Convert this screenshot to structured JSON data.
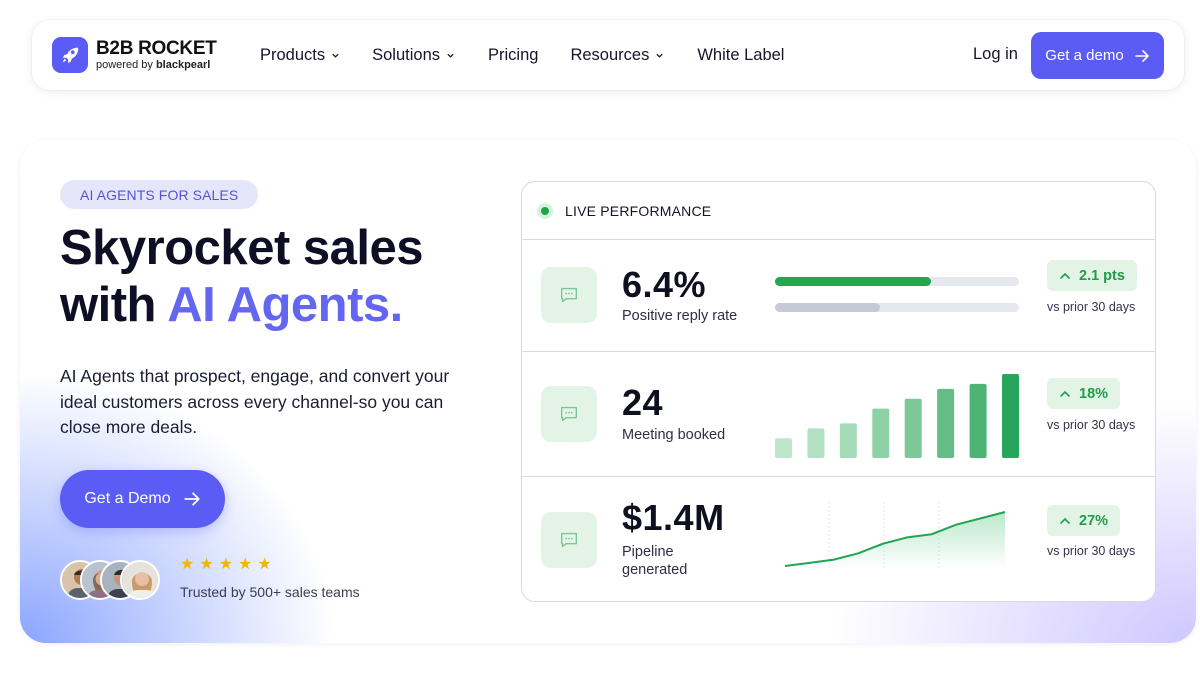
{
  "nav": {
    "logo_title": "B2B ROCKET",
    "logo_sub_prefix": "powered by ",
    "logo_sub_brand": "blackpearl",
    "links": [
      {
        "label": "Products",
        "dropdown": true
      },
      {
        "label": "Solutions",
        "dropdown": true
      },
      {
        "label": "Pricing",
        "dropdown": false
      },
      {
        "label": "Resources",
        "dropdown": true
      },
      {
        "label": "White Label",
        "dropdown": false
      }
    ],
    "login": "Log in",
    "demo": "Get a demo"
  },
  "hero": {
    "badge": "AI AGENTS FOR SALES",
    "headline_line1": "Skyrocket sales",
    "headline_line2_prefix": "with ",
    "headline_line2_accent": "AI Agents.",
    "description": "AI Agents that prospect, engage, and convert your ideal customers across every channel-so you can close more deals.",
    "cta": "Get a Demo",
    "rating_stars": 5,
    "trusted": "Trusted by 500+ sales teams"
  },
  "card": {
    "title": "LIVE PERFORMANCE",
    "rows": [
      {
        "value": "6.4%",
        "label": "Positive reply rate",
        "delta": "2.1 pts",
        "vs": "vs prior 30 days",
        "bar_current": 0.64,
        "bar_prior": 0.43
      },
      {
        "value": "24",
        "label": "Meeting booked",
        "delta": "18%",
        "vs": "vs prior 30 days",
        "bars": [
          4,
          6,
          7,
          10,
          12,
          14,
          15,
          17
        ]
      },
      {
        "value": "$1.4M",
        "label": "Pipeline generated",
        "delta": "27%",
        "vs": "vs prior 30 days",
        "trend": [
          1,
          2,
          3,
          5,
          8,
          10,
          11,
          14,
          16,
          18
        ]
      }
    ]
  },
  "colors": {
    "brand": "#5b5cf6",
    "accent_text": "#6366f1",
    "positive": "#1f9d4a",
    "positive_bg": "#e3f4e7"
  }
}
